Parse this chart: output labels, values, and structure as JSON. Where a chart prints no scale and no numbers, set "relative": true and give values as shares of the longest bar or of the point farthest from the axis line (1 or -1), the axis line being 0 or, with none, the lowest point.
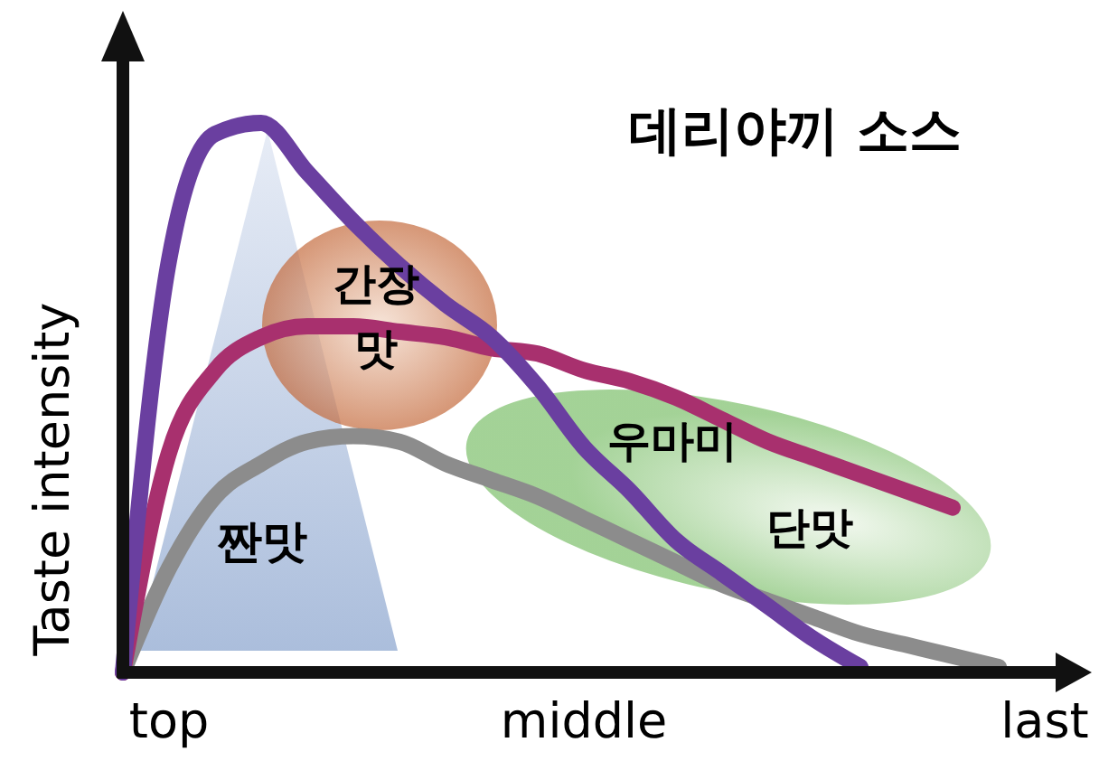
{
  "chart_data": {
    "type": "line",
    "relative": true,
    "title": "데리야끼 소스",
    "ylabel": "Taste intensity",
    "categories": [
      null,
      "top",
      null,
      null,
      null,
      null,
      null,
      null,
      null,
      null,
      "middle",
      null,
      null,
      null,
      null,
      null,
      null,
      null,
      null,
      null,
      "last"
    ],
    "series": [
      {
        "color": "#6a3fa0",
        "values": [
          0,
          0.75,
          0.98,
          1,
          0.91,
          0.82,
          0.74,
          0.67,
          0.61,
          0.52,
          0.41,
          0.33,
          0.24,
          0.18,
          0.12,
          0.06,
          0.01,
          null,
          null,
          null,
          null
        ]
      },
      {
        "color": "#a8306e",
        "values": [
          0,
          0.4,
          0.55,
          0.61,
          0.63,
          0.63,
          0.62,
          0.61,
          0.59,
          0.58,
          0.55,
          0.53,
          0.5,
          0.46,
          0.42,
          0.39,
          0.36,
          0.33,
          0.3,
          null,
          null
        ]
      },
      {
        "color": "#8c8c8c",
        "values": [
          0,
          0.19,
          0.32,
          0.38,
          0.42,
          0.43,
          0.42,
          0.38,
          0.35,
          0.32,
          0.28,
          0.24,
          0.2,
          0.16,
          0.13,
          0.1,
          0.07,
          0.05,
          0.03,
          0.01,
          null
        ]
      }
    ],
    "annotations": [
      "짠맛",
      "간장 맛",
      "우마미",
      "단맛"
    ],
    "marker": "none",
    "line_style": "solid"
  }
}
